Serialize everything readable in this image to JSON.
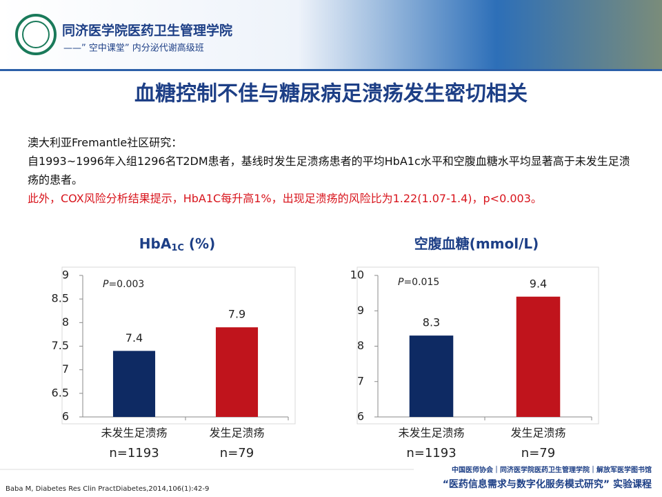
{
  "header": {
    "org": "同济医学院医药卫生管理学院",
    "program": "——” 空中课堂” 内分泌代谢高级班"
  },
  "title": "血糖控制不佳与糖尿病足溃疡发生密切相关",
  "body": [
    "澳大利亚Fremantle社区研究：",
    "自1993~1996年入组1296名T2DM患者，基线时发生足溃疡患者的平均HbA1c水平和空腹血糖水平均显著高于未发生足溃疡的患者。",
    "此外，COX风险分析结果提示，HbA1C每升高1%，出现足溃疡的风险比为1.22(1.07-1.4)，p<0.003。"
  ],
  "chart_data": [
    {
      "type": "bar",
      "title": [
        "HbA",
        "1C",
        " (%)"
      ],
      "categories": [
        "未发生足溃疡",
        "发生足溃疡"
      ],
      "category_notes": [
        "n=1193",
        "n=79"
      ],
      "values": [
        7.4,
        7.9
      ],
      "colors": [
        "#0e2a63",
        "#c0141c"
      ],
      "ylim": [
        6,
        9
      ],
      "yticks": [
        6,
        6.5,
        7,
        7.5,
        8,
        8.5,
        9
      ],
      "annotation": [
        "P",
        "=0.003"
      ]
    },
    {
      "type": "bar",
      "title": [
        "空腹血糖(mmol/L)"
      ],
      "categories": [
        "未发生足溃疡",
        "发生足溃疡"
      ],
      "category_notes": [
        "n=1193",
        "n=79"
      ],
      "values": [
        8.3,
        9.4
      ],
      "colors": [
        "#0e2a63",
        "#c0141c"
      ],
      "ylim": [
        6,
        10
      ],
      "yticks": [
        6,
        7,
        8,
        9,
        10
      ],
      "annotation": [
        "P",
        "=0.015"
      ]
    }
  ],
  "footer": {
    "citation": "Baba M, Diabetes Res Clin PractDiabetes,2014,106(1):42-9",
    "partners": "中国医师协会｜同济医学院医药卫生管理学院｜解放军医学图书馆",
    "course": "“医药信息需求与数字化服务模式研究” 实验课程"
  }
}
